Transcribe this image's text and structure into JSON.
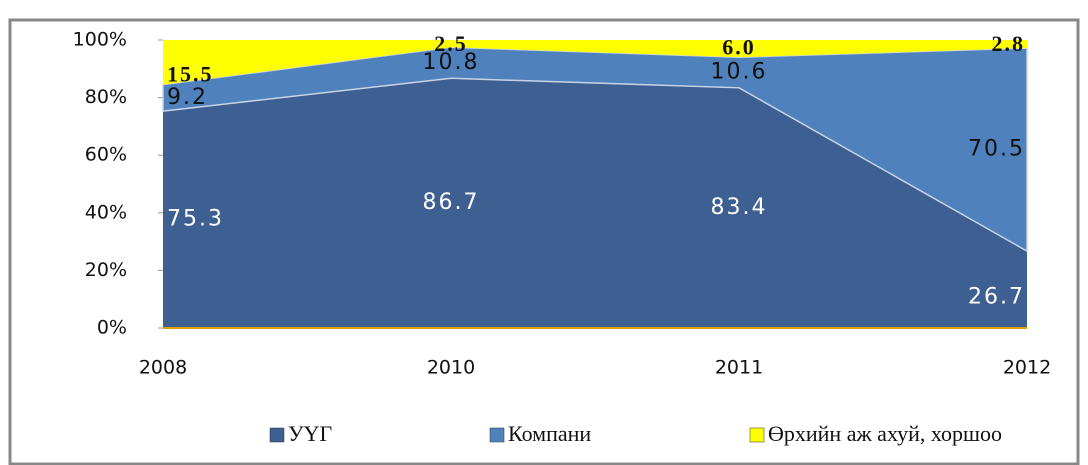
{
  "chart_data": {
    "type": "area_stacked",
    "categories": [
      "2008",
      "2010",
      "2011",
      "2012"
    ],
    "series": [
      {
        "name": "УҮГ",
        "color": "#3d5f91",
        "values": [
          75.3,
          86.7,
          83.4,
          26.7
        ]
      },
      {
        "name": "Компани",
        "color": "#4f81bd",
        "values": [
          9.2,
          10.8,
          10.6,
          70.5
        ]
      },
      {
        "name": "Өрхийн аж ахуй, хоршоо",
        "color": "#ffff00",
        "values": [
          15.5,
          2.5,
          6.0,
          2.8
        ],
        "value_labels": [
          "15.5",
          "2.5",
          "6.0",
          "2.8"
        ]
      }
    ],
    "ylim": [
      0,
      100
    ],
    "yticks": [
      {
        "value": 0,
        "label": "0%"
      },
      {
        "value": 20,
        "label": "20%"
      },
      {
        "value": 40,
        "label": "40%"
      },
      {
        "value": 60,
        "label": "60%"
      },
      {
        "value": 80,
        "label": "80%"
      },
      {
        "value": 100,
        "label": "100%"
      }
    ],
    "legend": "bottom"
  }
}
